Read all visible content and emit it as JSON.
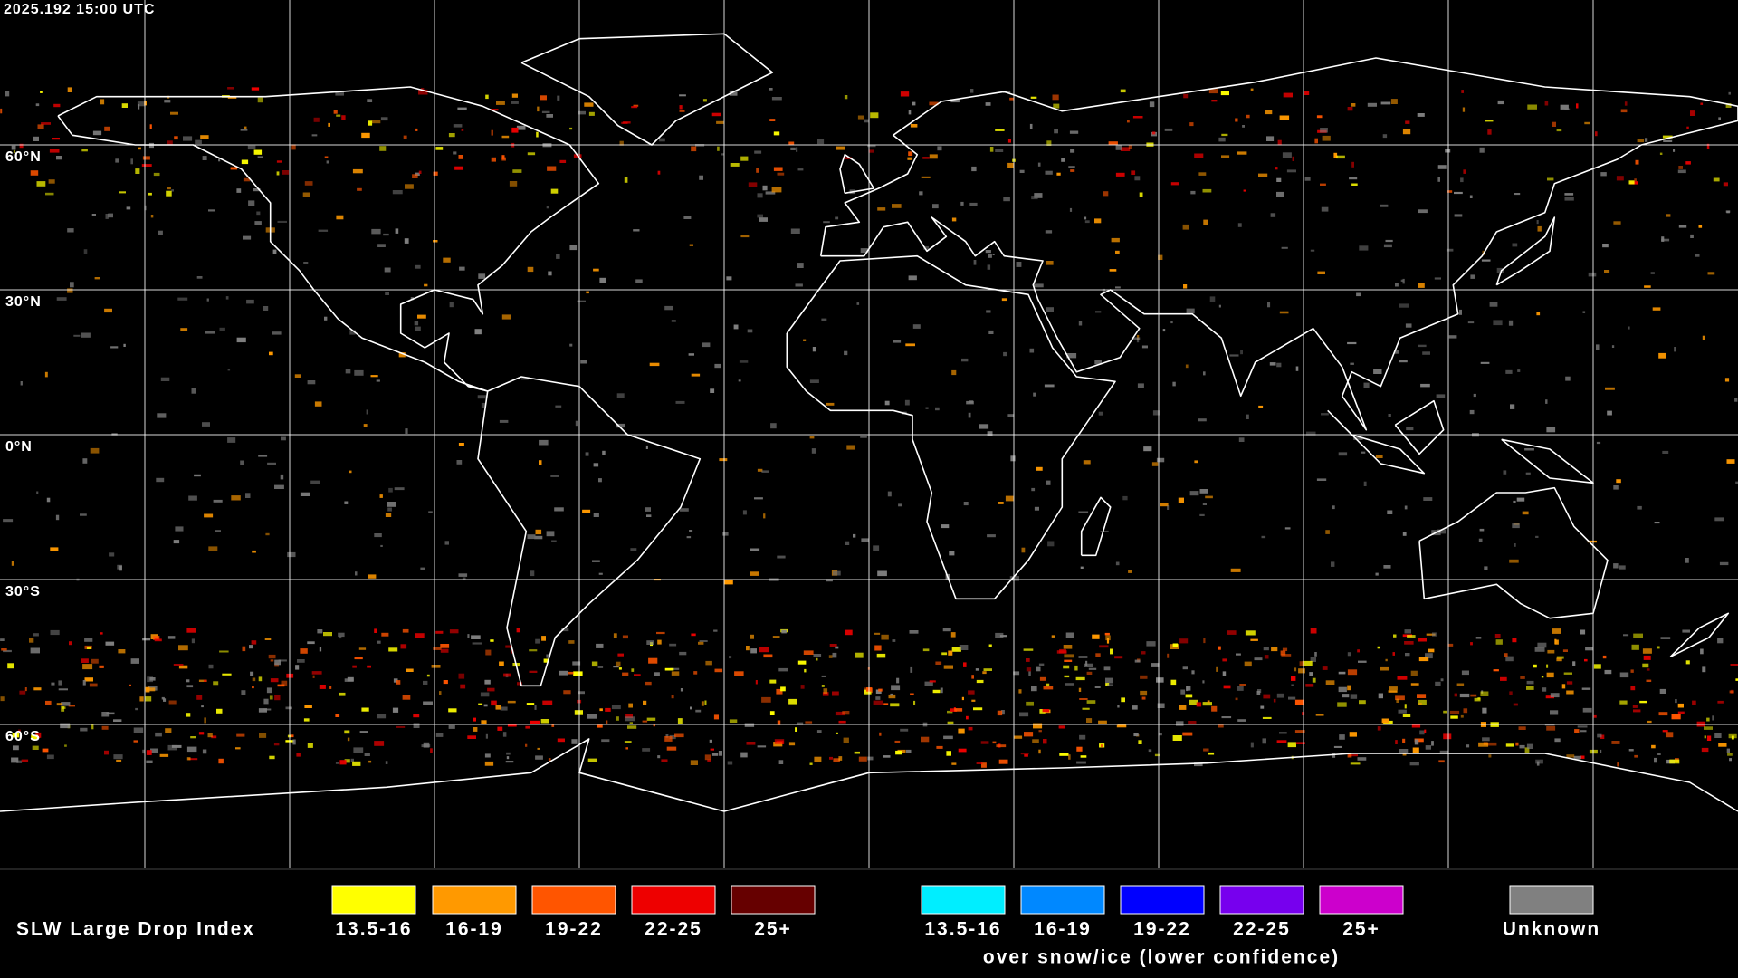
{
  "header": {
    "timestamp": "2025.192 15:00 UTC"
  },
  "map": {
    "lat_labels": [
      "60°N",
      "30°N",
      "0°N",
      "30°S",
      "60°S"
    ]
  },
  "legend": {
    "title": "SLW Large Drop Index",
    "items": [
      {
        "label": "13.5-16",
        "color": "#ffff00"
      },
      {
        "label": "16-19",
        "color": "#ff9900"
      },
      {
        "label": "19-22",
        "color": "#ff5500"
      },
      {
        "label": "22-25",
        "color": "#ee0000"
      },
      {
        "label": "25+",
        "color": "#660000"
      }
    ],
    "snow_items": [
      {
        "label": "13.5-16",
        "color": "#00eeff"
      },
      {
        "label": "16-19",
        "color": "#0088ff"
      },
      {
        "label": "19-22",
        "color": "#0000ff"
      },
      {
        "label": "22-25",
        "color": "#7700ee"
      },
      {
        "label": "25+",
        "color": "#cc00cc"
      }
    ],
    "snow_caption": "over snow/ice (lower confidence)",
    "unknown": {
      "label": "Unknown",
      "color": "#808080"
    }
  }
}
